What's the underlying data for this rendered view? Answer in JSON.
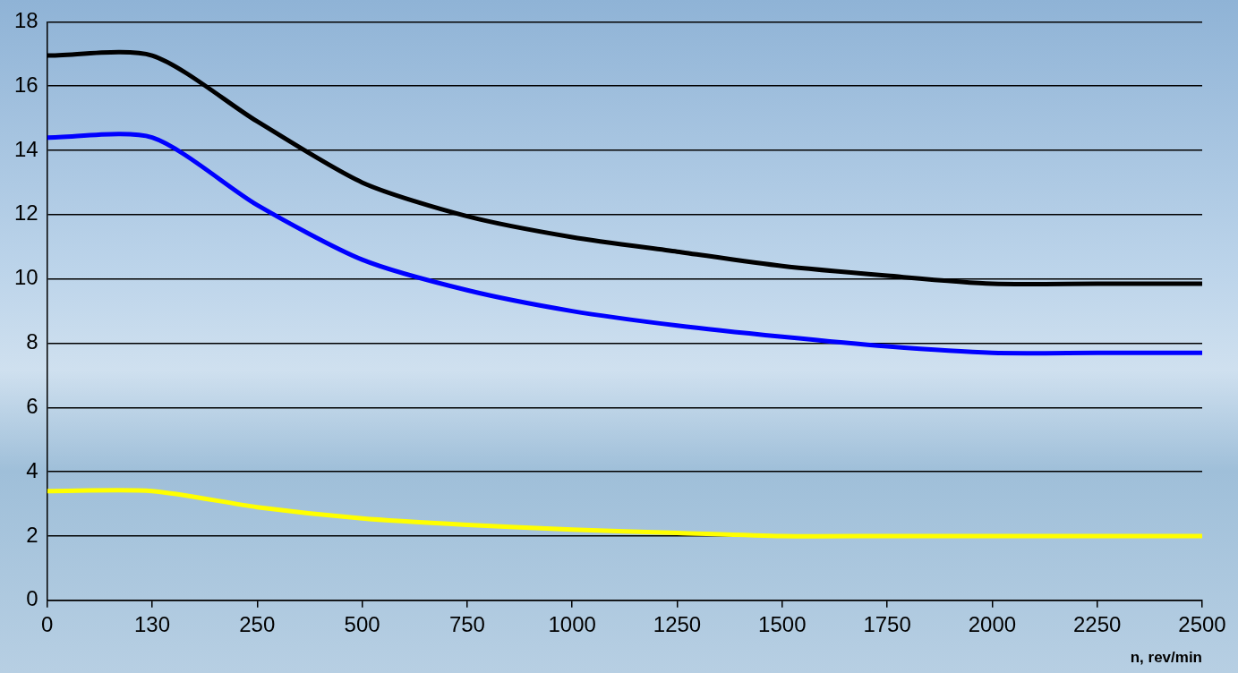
{
  "chart_data": {
    "type": "line",
    "x_label": "n, rev/min",
    "categories": [
      0,
      130,
      250,
      500,
      750,
      1000,
      1250,
      1500,
      1750,
      2000,
      2250,
      2500
    ],
    "series": [
      {
        "color": "#000000",
        "values": [
          16.95,
          16.95,
          14.9,
          13.0,
          11.95,
          11.3,
          10.85,
          10.4,
          10.1,
          9.85,
          9.85,
          9.85
        ]
      },
      {
        "color": "#0000ff",
        "values": [
          14.4,
          14.4,
          12.3,
          10.6,
          9.65,
          9.0,
          8.55,
          8.2,
          7.9,
          7.7,
          7.7,
          7.7
        ]
      },
      {
        "color": "#ffff00",
        "values": [
          3.4,
          3.4,
          2.9,
          2.55,
          2.35,
          2.2,
          2.1,
          2.0,
          2.0,
          2.0,
          2.0,
          2.0
        ]
      }
    ],
    "ylim": [
      0,
      18
    ],
    "yticks": [
      0,
      2,
      4,
      6,
      8,
      10,
      12,
      14,
      16,
      18
    ],
    "grid": true
  }
}
